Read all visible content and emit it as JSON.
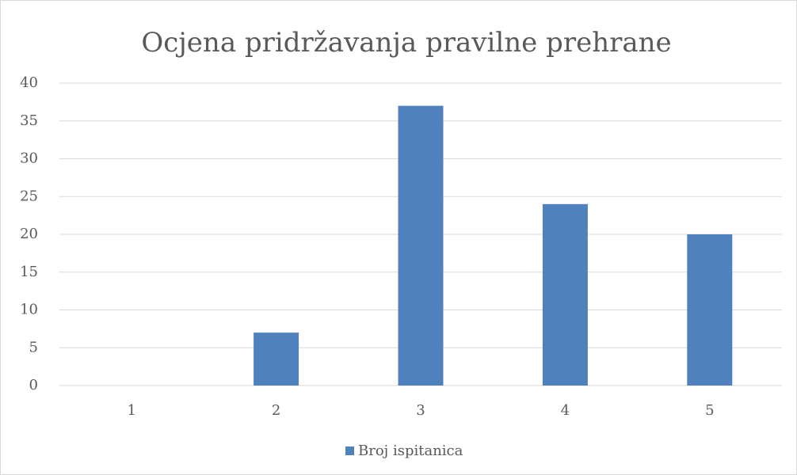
{
  "chart_data": {
    "type": "bar",
    "title": "Ocjena pridržavanja pravilne prehrane",
    "categories": [
      "1",
      "2",
      "3",
      "4",
      "5"
    ],
    "series": [
      {
        "name": "Broj ispitanica",
        "color": "#4f81bd",
        "values": [
          0,
          7,
          37,
          24,
          20
        ]
      }
    ],
    "ylim": [
      0,
      40
    ],
    "yticks": [
      0,
      5,
      10,
      15,
      20,
      25,
      30,
      35,
      40
    ],
    "grid": true,
    "legend": "bottom"
  }
}
